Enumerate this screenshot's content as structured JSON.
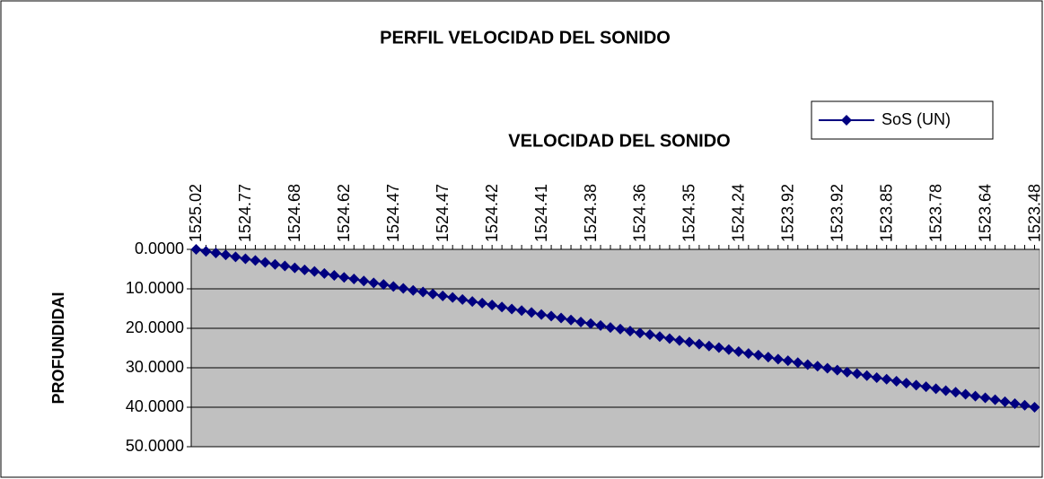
{
  "chart_data": {
    "type": "line",
    "title": "PERFIL VELOCIDAD DEL SONIDO",
    "x_label": "VELOCIDAD DEL SONIDO",
    "y_label": "PROFUNDIDAI",
    "x_axis_position": "top",
    "y_reversed": true,
    "grid": true,
    "legend": "top-right",
    "plot_background": "#c0c0c0",
    "categories": [
      "1525.02",
      null,
      null,
      null,
      null,
      "1524.77",
      null,
      null,
      null,
      null,
      "1524.68",
      null,
      null,
      null,
      null,
      "1524.62",
      null,
      null,
      null,
      null,
      "1524.47",
      null,
      null,
      null,
      null,
      "1524.47",
      null,
      null,
      null,
      null,
      "1524.42",
      null,
      null,
      null,
      null,
      "1524.41",
      null,
      null,
      null,
      null,
      "1524.38",
      null,
      null,
      null,
      null,
      "1524.36",
      null,
      null,
      null,
      null,
      "1524.35",
      null,
      null,
      null,
      null,
      "1524.24",
      null,
      null,
      null,
      null,
      "1523.92",
      null,
      null,
      null,
      null,
      "1523.92",
      null,
      null,
      null,
      null,
      "1523.85",
      null,
      null,
      null,
      null,
      "1523.78",
      null,
      null,
      null,
      null,
      "1523.64",
      null,
      null,
      null,
      null,
      "1523.48"
    ],
    "series": [
      {
        "name": "SoS (UN)",
        "color": "#000080",
        "values": [
          0,
          0.5,
          0.9,
          1.4,
          1.9,
          2.4,
          2.8,
          3.3,
          3.8,
          4.2,
          4.7,
          5.2,
          5.6,
          6.1,
          6.6,
          7.1,
          7.5,
          8.0,
          8.5,
          8.9,
          9.4,
          9.9,
          10.4,
          10.8,
          11.3,
          11.8,
          12.2,
          12.7,
          13.2,
          13.6,
          14.1,
          14.6,
          15.1,
          15.5,
          16.0,
          16.5,
          16.9,
          17.4,
          17.9,
          18.4,
          18.8,
          19.3,
          19.8,
          20.2,
          20.7,
          21.2,
          21.6,
          22.1,
          22.6,
          23.1,
          23.5,
          24.0,
          24.5,
          24.9,
          25.4,
          25.9,
          26.4,
          26.8,
          27.3,
          27.8,
          28.2,
          28.7,
          29.2,
          29.6,
          30.1,
          30.6,
          31.1,
          31.5,
          32.0,
          32.5,
          32.9,
          33.4,
          33.9,
          34.4,
          34.8,
          35.3,
          35.8,
          36.2,
          36.7,
          37.2,
          37.6,
          38.1,
          38.6,
          39.1,
          39.5,
          40.0
        ]
      }
    ],
    "ylim": [
      0,
      50
    ],
    "yticks": [
      {
        "value": 0,
        "label": "0.0000"
      },
      {
        "value": 10,
        "label": "10.0000"
      },
      {
        "value": 20,
        "label": "20.0000"
      },
      {
        "value": 30,
        "label": "30.0000"
      },
      {
        "value": 40,
        "label": "40.0000"
      },
      {
        "value": 50,
        "label": "50.0000"
      }
    ]
  }
}
